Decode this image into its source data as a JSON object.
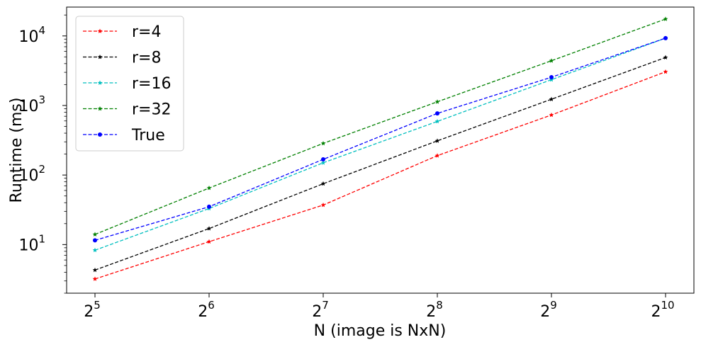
{
  "chart_data": {
    "type": "line",
    "title": "",
    "xlabel": "N (image is NxN)",
    "ylabel": "Runtime (ms)",
    "x_scale": "log2",
    "y_scale": "log10",
    "x": [
      32,
      64,
      128,
      256,
      512,
      1024
    ],
    "x_tick_base": "2",
    "x_tick_exponents": [
      "5",
      "6",
      "7",
      "8",
      "9",
      "10"
    ],
    "y_tick_base": "10",
    "y_tick_exponents": [
      "1",
      "2",
      "3",
      "4"
    ],
    "ylim": [
      2,
      26000
    ],
    "grid": false,
    "legend_position": "top-left",
    "series": [
      {
        "name": "r=4",
        "color": "#ff0000",
        "marker": "star",
        "values": [
          3.2,
          11,
          37,
          190,
          730,
          3050
        ]
      },
      {
        "name": "r=8",
        "color": "#000000",
        "marker": "star",
        "values": [
          4.3,
          17,
          75,
          310,
          1230,
          4900
        ]
      },
      {
        "name": "r=16",
        "color": "#00bfbf",
        "marker": "star",
        "values": [
          8.3,
          33,
          150,
          590,
          2350,
          9300
        ]
      },
      {
        "name": "r=32",
        "color": "#008000",
        "marker": "star",
        "values": [
          14,
          65,
          285,
          1130,
          4400,
          17500
        ]
      },
      {
        "name": "True",
        "color": "#0000ff",
        "marker": "circle",
        "values": [
          11.5,
          35,
          168,
          770,
          2550,
          9300
        ]
      }
    ]
  }
}
